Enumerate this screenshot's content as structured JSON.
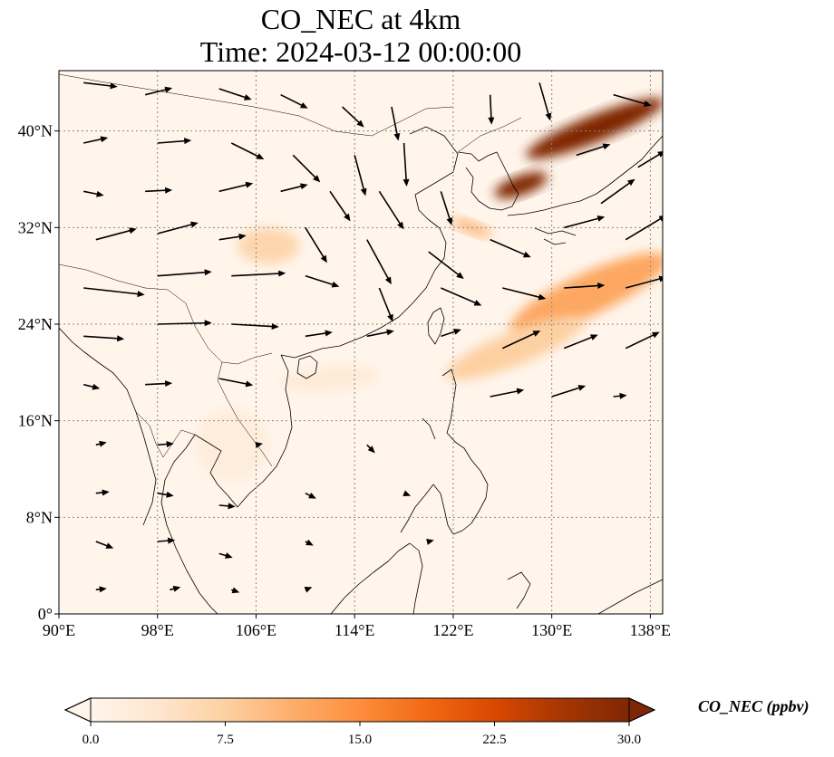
{
  "title": {
    "line1": "CO_NEC at 4km",
    "line2": "Time: 2024-03-12 00:00:00"
  },
  "map": {
    "lon_range": [
      90,
      139
    ],
    "lat_range": [
      0,
      45
    ],
    "gridlines": true,
    "lon_ticks": [
      {
        "value": 90,
        "label": "90°E"
      },
      {
        "value": 98,
        "label": "98°E"
      },
      {
        "value": 106,
        "label": "106°E"
      },
      {
        "value": 114,
        "label": "114°E"
      },
      {
        "value": 122,
        "label": "122°E"
      },
      {
        "value": 130,
        "label": "130°E"
      },
      {
        "value": 138,
        "label": "138°E"
      }
    ],
    "lat_ticks": [
      {
        "value": 0,
        "label": "0°"
      },
      {
        "value": 8,
        "label": "8°N"
      },
      {
        "value": 16,
        "label": "16°N"
      },
      {
        "value": 24,
        "label": "24°N"
      },
      {
        "value": 32,
        "label": "32°N"
      },
      {
        "value": 40,
        "label": "40°N"
      }
    ],
    "field_plumes": [
      {
        "lon": 133.5,
        "lat": 40.2,
        "value": 30,
        "len_deg": 12,
        "wid_deg": 2.2,
        "angle_deg": 22
      },
      {
        "lon": 127.5,
        "lat": 35.5,
        "value": 30,
        "len_deg": 4.5,
        "wid_deg": 1.6,
        "angle_deg": 20
      },
      {
        "lon": 133.0,
        "lat": 26.5,
        "value": 12,
        "len_deg": 14,
        "wid_deg": 3.5,
        "angle_deg": 25
      },
      {
        "lon": 127.0,
        "lat": 22.0,
        "value": 7.5,
        "len_deg": 12,
        "wid_deg": 2.8,
        "angle_deg": 22
      },
      {
        "lon": 107.0,
        "lat": 30.5,
        "value": 6.5,
        "len_deg": 5,
        "wid_deg": 3,
        "angle_deg": 0
      },
      {
        "lon": 123.5,
        "lat": 32.0,
        "value": 10,
        "len_deg": 3.5,
        "wid_deg": 1,
        "angle_deg": -20
      },
      {
        "lon": 112.0,
        "lat": 19.5,
        "value": 2.5,
        "len_deg": 8,
        "wid_deg": 2,
        "angle_deg": 5
      },
      {
        "lon": 104.0,
        "lat": 14.0,
        "value": 2.0,
        "len_deg": 6,
        "wid_deg": 6,
        "angle_deg": 0
      }
    ],
    "wind_vectors": [
      {
        "lon": 92,
        "lat": 44,
        "u": 2.5,
        "v": -0.3
      },
      {
        "lon": 97,
        "lat": 43,
        "u": 2.0,
        "v": 0.5
      },
      {
        "lon": 103,
        "lat": 43.5,
        "u": 2.4,
        "v": -0.8
      },
      {
        "lon": 108,
        "lat": 43,
        "u": 2.0,
        "v": -1.0
      },
      {
        "lon": 113,
        "lat": 42,
        "u": 1.6,
        "v": -1.5
      },
      {
        "lon": 117,
        "lat": 42,
        "u": 0.5,
        "v": -2.5
      },
      {
        "lon": 125,
        "lat": 43,
        "u": 0.1,
        "v": -2.2
      },
      {
        "lon": 129,
        "lat": 44,
        "u": 0.8,
        "v": -2.8
      },
      {
        "lon": 135,
        "lat": 43,
        "u": 2.8,
        "v": -0.8
      },
      {
        "lon": 92,
        "lat": 39,
        "u": 1.8,
        "v": 0.4
      },
      {
        "lon": 98,
        "lat": 39,
        "u": 2.5,
        "v": 0.2
      },
      {
        "lon": 104,
        "lat": 39,
        "u": 2.4,
        "v": -1.2
      },
      {
        "lon": 109,
        "lat": 38,
        "u": 2.0,
        "v": -2.0
      },
      {
        "lon": 114,
        "lat": 38,
        "u": 0.8,
        "v": -3.0
      },
      {
        "lon": 118,
        "lat": 39,
        "u": 0.2,
        "v": -3.2
      },
      {
        "lon": 132,
        "lat": 38,
        "u": 2.5,
        "v": 0.8
      },
      {
        "lon": 137,
        "lat": 37,
        "u": 2.0,
        "v": 1.2
      },
      {
        "lon": 92,
        "lat": 35,
        "u": 1.5,
        "v": -0.3
      },
      {
        "lon": 97,
        "lat": 35,
        "u": 2.0,
        "v": 0.1
      },
      {
        "lon": 103,
        "lat": 35,
        "u": 2.5,
        "v": 0.6
      },
      {
        "lon": 108,
        "lat": 35,
        "u": 2.0,
        "v": 0.5
      },
      {
        "lon": 112,
        "lat": 35,
        "u": 1.5,
        "v": -2.2
      },
      {
        "lon": 116,
        "lat": 35,
        "u": 1.8,
        "v": -2.8
      },
      {
        "lon": 121,
        "lat": 35,
        "u": 0.8,
        "v": -2.5
      },
      {
        "lon": 134,
        "lat": 34,
        "u": 2.5,
        "v": 1.8
      },
      {
        "lon": 93,
        "lat": 31,
        "u": 3.0,
        "v": 0.8
      },
      {
        "lon": 98,
        "lat": 31.5,
        "u": 3.0,
        "v": 0.8
      },
      {
        "lon": 103,
        "lat": 31,
        "u": 2.0,
        "v": 0.3
      },
      {
        "lon": 110,
        "lat": 32,
        "u": 1.6,
        "v": -2.6
      },
      {
        "lon": 115,
        "lat": 31,
        "u": 1.8,
        "v": -3.3
      },
      {
        "lon": 120,
        "lat": 30,
        "u": 2.6,
        "v": -2.0
      },
      {
        "lon": 125,
        "lat": 31,
        "u": 3.0,
        "v": -1.3
      },
      {
        "lon": 131,
        "lat": 32,
        "u": 3.0,
        "v": 0.8
      },
      {
        "lon": 136,
        "lat": 31,
        "u": 3.0,
        "v": 1.8
      },
      {
        "lon": 92,
        "lat": 27,
        "u": 4.5,
        "v": -0.5
      },
      {
        "lon": 98,
        "lat": 28,
        "u": 4.0,
        "v": 0.3
      },
      {
        "lon": 104,
        "lat": 28,
        "u": 4.0,
        "v": 0.2
      },
      {
        "lon": 110,
        "lat": 28,
        "u": 2.5,
        "v": -0.8
      },
      {
        "lon": 116,
        "lat": 27,
        "u": 1.0,
        "v": -2.5
      },
      {
        "lon": 121,
        "lat": 27,
        "u": 3.0,
        "v": -1.3
      },
      {
        "lon": 126,
        "lat": 27,
        "u": 3.2,
        "v": -0.8
      },
      {
        "lon": 131,
        "lat": 27,
        "u": 3.0,
        "v": 0.2
      },
      {
        "lon": 136,
        "lat": 27,
        "u": 3.0,
        "v": 0.8
      },
      {
        "lon": 92,
        "lat": 23,
        "u": 3.0,
        "v": -0.2
      },
      {
        "lon": 98,
        "lat": 24,
        "u": 4.0,
        "v": 0.1
      },
      {
        "lon": 104,
        "lat": 24,
        "u": 3.5,
        "v": -0.2
      },
      {
        "lon": 110,
        "lat": 23,
        "u": 2.0,
        "v": 0.3
      },
      {
        "lon": 115,
        "lat": 23,
        "u": 2.0,
        "v": 0.4
      },
      {
        "lon": 121,
        "lat": 23,
        "u": 1.5,
        "v": 0.5
      },
      {
        "lon": 126,
        "lat": 22,
        "u": 2.8,
        "v": 1.3
      },
      {
        "lon": 131,
        "lat": 22,
        "u": 2.5,
        "v": 1.0
      },
      {
        "lon": 136,
        "lat": 22,
        "u": 2.5,
        "v": 1.2
      },
      {
        "lon": 92,
        "lat": 19,
        "u": 1.2,
        "v": -0.3
      },
      {
        "lon": 97,
        "lat": 19,
        "u": 2.0,
        "v": 0.1
      },
      {
        "lon": 103,
        "lat": 19.5,
        "u": 2.5,
        "v": -0.5
      },
      {
        "lon": 125,
        "lat": 18,
        "u": 2.5,
        "v": 0.5
      },
      {
        "lon": 130,
        "lat": 18,
        "u": 2.5,
        "v": 0.8
      },
      {
        "lon": 135,
        "lat": 18,
        "u": 1.0,
        "v": 0.1
      },
      {
        "lon": 93,
        "lat": 14,
        "u": 0.8,
        "v": 0.2
      },
      {
        "lon": 98,
        "lat": 14,
        "u": 1.2,
        "v": 0.1
      },
      {
        "lon": 106,
        "lat": 14,
        "u": 0.5,
        "v": 0.1
      },
      {
        "lon": 115,
        "lat": 14,
        "u": 0.6,
        "v": -0.6
      },
      {
        "lon": 93,
        "lat": 10,
        "u": 1.0,
        "v": 0.1
      },
      {
        "lon": 98,
        "lat": 10,
        "u": 1.2,
        "v": -0.2
      },
      {
        "lon": 103,
        "lat": 9,
        "u": 1.2,
        "v": -0.1
      },
      {
        "lon": 110,
        "lat": 10,
        "u": 0.8,
        "v": -0.4
      },
      {
        "lon": 118,
        "lat": 10,
        "u": 0.5,
        "v": -0.2
      },
      {
        "lon": 93,
        "lat": 6,
        "u": 1.3,
        "v": -0.5
      },
      {
        "lon": 98,
        "lat": 6,
        "u": 1.3,
        "v": 0.1
      },
      {
        "lon": 103,
        "lat": 5,
        "u": 1.0,
        "v": -0.3
      },
      {
        "lon": 110,
        "lat": 6,
        "u": 0.6,
        "v": -0.3
      },
      {
        "lon": 120,
        "lat": 6,
        "u": 0.4,
        "v": 0.1
      },
      {
        "lon": 93,
        "lat": 2,
        "u": 0.8,
        "v": 0.1
      },
      {
        "lon": 99,
        "lat": 2,
        "u": 0.8,
        "v": 0.2
      },
      {
        "lon": 104,
        "lat": 2,
        "u": 0.6,
        "v": -0.2
      },
      {
        "lon": 110,
        "lat": 2,
        "u": 0.5,
        "v": 0.2
      }
    ]
  },
  "colorbar": {
    "min": 0,
    "max": 30,
    "label": "CO_NEC (ppbv)",
    "ticks": [
      {
        "value": 0,
        "label": "0.0"
      },
      {
        "value": 7.5,
        "label": "7.5"
      },
      {
        "value": 15,
        "label": "15.0"
      },
      {
        "value": 22.5,
        "label": "22.5"
      },
      {
        "value": 30,
        "label": "30.0"
      }
    ],
    "colors": [
      "#fff5eb",
      "#fee6ce",
      "#fdd0a2",
      "#fdae6b",
      "#fd8d3c",
      "#f16913",
      "#d94801",
      "#a63603",
      "#7f2704"
    ]
  }
}
